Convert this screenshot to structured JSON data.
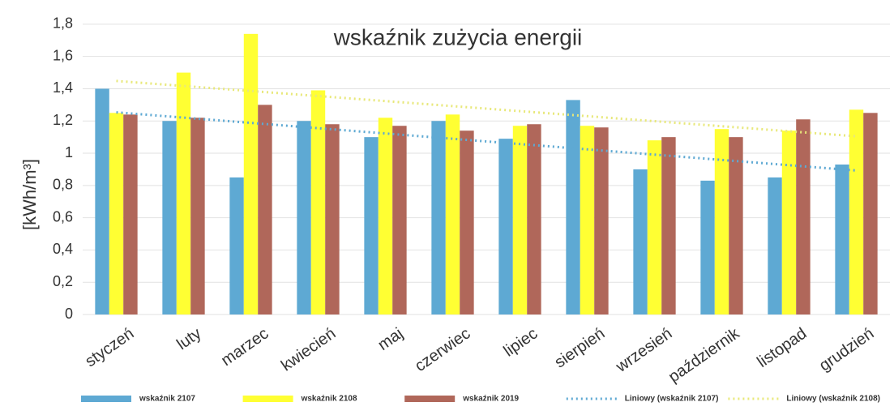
{
  "chart_data": {
    "type": "bar",
    "title": "wskaźnik zużycia energii",
    "y_label": "[kWh/m³]",
    "categories": [
      "styczeń",
      "luty",
      "marzec",
      "kwiecień",
      "maj",
      "czerwiec",
      "lipiec",
      "sierpień",
      "wrzesień",
      "październik",
      "listopad",
      "grudzień"
    ],
    "series": [
      {
        "name": "wskaźnik 2107",
        "color": "#5ea9d3",
        "values": [
          1.4,
          1.2,
          0.85,
          1.2,
          1.1,
          1.2,
          1.09,
          1.33,
          0.9,
          0.83,
          0.85,
          0.93
        ]
      },
      {
        "name": "wskaźnik 2108",
        "color": "#ffff33",
        "values": [
          1.25,
          1.5,
          1.74,
          1.39,
          1.22,
          1.24,
          1.17,
          1.17,
          1.08,
          1.15,
          1.14,
          1.27
        ]
      },
      {
        "name": "wskaźnik 2019",
        "color": "#b0675a",
        "values": [
          1.24,
          1.22,
          1.3,
          1.18,
          1.17,
          1.14,
          1.18,
          1.16,
          1.1,
          1.1,
          1.21,
          1.25
        ]
      }
    ],
    "trendlines": [
      {
        "name": "Liniowy (wskaźnik 2107)",
        "series": 0,
        "color": "#5ea9d3"
      },
      {
        "name": "Liniowy (wskaźnik 2108)",
        "series": 1,
        "color": "#e8e87a"
      }
    ],
    "ylim": [
      0,
      1.9
    ],
    "yticks": [
      0,
      {
        "value": 0.2,
        "label": "0,2"
      },
      {
        "value": 0.4,
        "label": "0,4"
      },
      {
        "value": 0.6,
        "label": "0,6"
      },
      {
        "value": 0.8,
        "label": "0,8"
      },
      1,
      {
        "value": 1.2,
        "label": "1,2"
      },
      {
        "value": 1.4,
        "label": "1,4"
      },
      {
        "value": 1.6,
        "label": "1,6"
      },
      {
        "value": 1.8,
        "label": "1,8"
      }
    ],
    "grid": true,
    "legend": "bottom"
  }
}
